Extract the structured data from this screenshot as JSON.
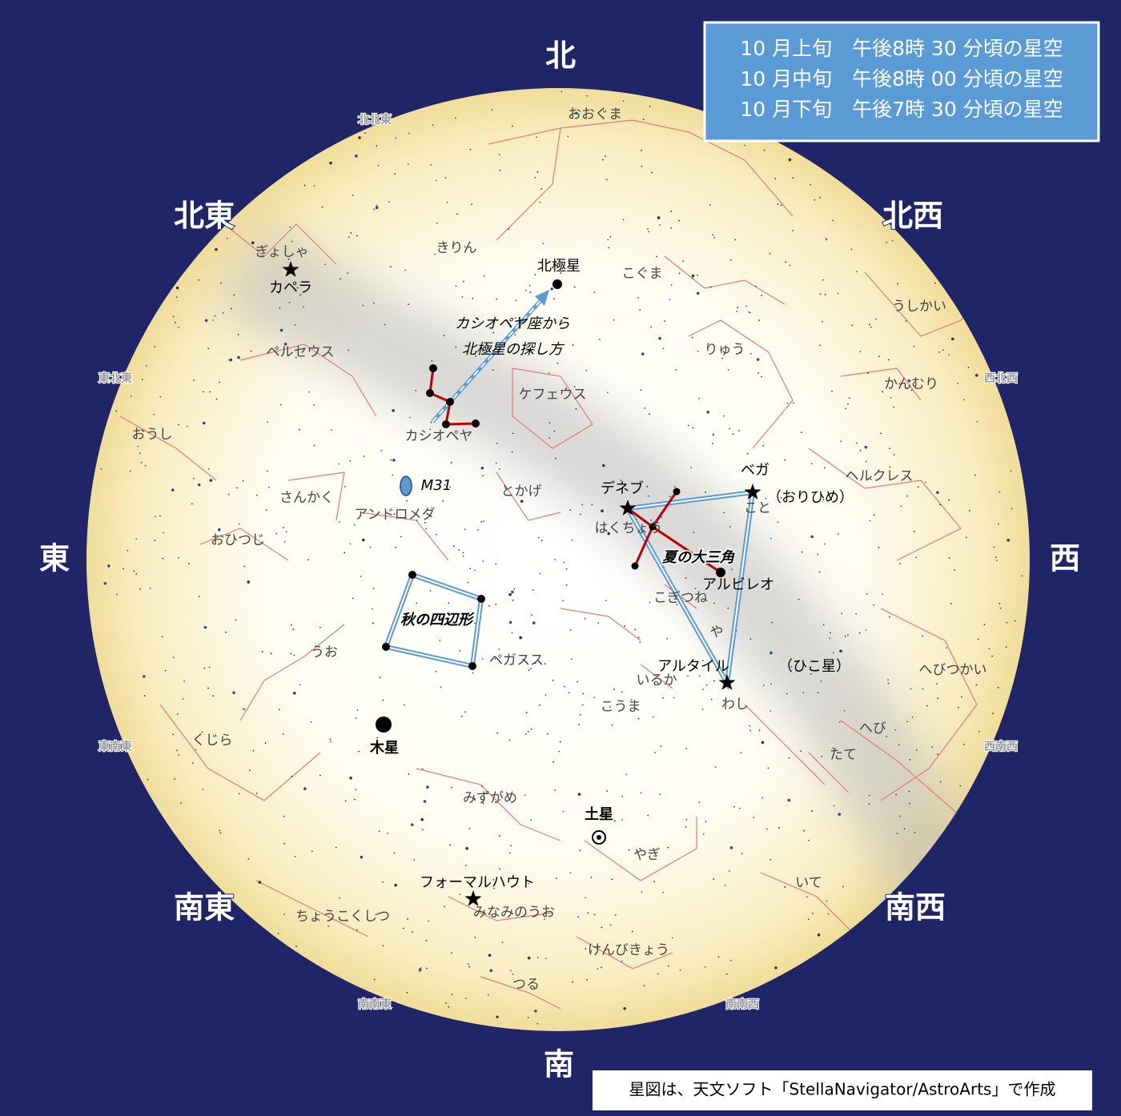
{
  "info_box": {
    "lines": [
      "10 月上旬　午後8時 30 分頃の星空",
      "10 月中旬　午後8時 00 分頃の星空",
      "10 月下旬　午後7時 30 分頃の星空"
    ]
  },
  "directions": {
    "north": "北",
    "northeast": "北東",
    "northwest": "北西",
    "east": "東",
    "west": "西",
    "southeast": "南東",
    "southwest": "南西",
    "south": "南"
  },
  "minor_directions": {
    "nne": "北北東",
    "ene": "東北東",
    "ese": "東南東",
    "sse": "南南東",
    "ssw": "南南西",
    "wsw": "西南西",
    "wnw": "西北西"
  },
  "constellations": [
    "おおぐま",
    "きりん",
    "こぐま",
    "ぎょしゃ",
    "ペルセウス",
    "りゅう",
    "うしかい",
    "かんむり",
    "ケフェウス",
    "カシオペヤ",
    "おうし",
    "ヘルクレス",
    "さんかく",
    "アンドロメダ",
    "とかげ",
    "こと",
    "はくちょう",
    "おひつじ",
    "こぎつね",
    "や",
    "ペガスス",
    "うお",
    "いるか",
    "へびつかい",
    "わし",
    "こうま",
    "へび",
    "たて",
    "くじら",
    "みずがめ",
    "やぎ",
    "いて",
    "みなみのうお",
    "ちょうこくしつ",
    "けんびきょう",
    "つる"
  ],
  "stars": [
    "カペラ",
    "北極星",
    "ベガ",
    "デネブ",
    "アルタイル",
    "フォーマルハウト",
    "アルビレオ"
  ],
  "star_notes": {
    "vega": "（おりひめ）",
    "altair": "（ひこ星）"
  },
  "planets": [
    "木星",
    "土星"
  ],
  "annotations": {
    "polaris_guide": [
      "カシオペヤ座から",
      "北極星の探し方"
    ],
    "summer_triangle": "夏の大三角",
    "autumn_square": "秋の四辺形",
    "m31": "M31"
  },
  "credit": "星図は、天文ソフト「StellaNavigator/AstroArts」で作成"
}
